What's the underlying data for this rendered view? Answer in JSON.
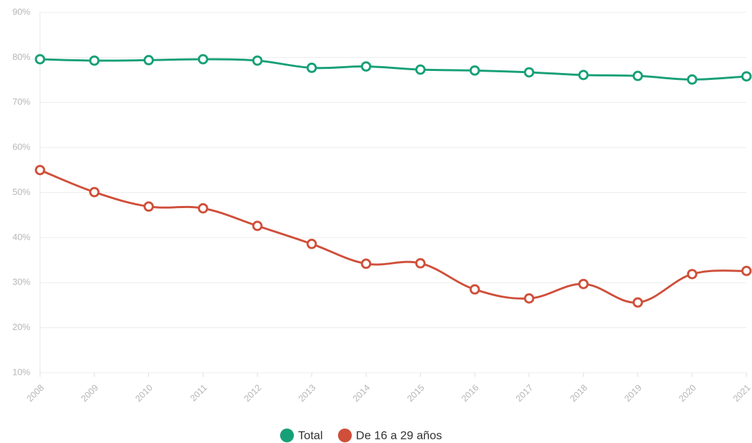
{
  "chart_data": {
    "type": "line",
    "categories": [
      "2008",
      "2009",
      "2010",
      "2011",
      "2012",
      "2013",
      "2014",
      "2015",
      "2016",
      "2017",
      "2018",
      "2019",
      "2020",
      "2021"
    ],
    "series": [
      {
        "name": "Total",
        "color": "#17a077",
        "values": [
          79.6,
          79.3,
          79.4,
          79.6,
          79.3,
          77.7,
          78.0,
          77.3,
          77.1,
          76.7,
          76.1,
          75.9,
          75.1,
          75.8
        ]
      },
      {
        "name": "De 16 a 29 años",
        "color": "#cf4f3a",
        "values": [
          55.0,
          50.1,
          46.9,
          46.5,
          42.6,
          38.6,
          34.2,
          34.3,
          28.5,
          26.5,
          29.7,
          25.6,
          31.9,
          32.6
        ]
      }
    ],
    "ylim": [
      10,
      90
    ],
    "yticks": [
      {
        "value": 10,
        "label": "10%"
      },
      {
        "value": 20,
        "label": "20%"
      },
      {
        "value": 30,
        "label": "30%"
      },
      {
        "value": 40,
        "label": "40%"
      },
      {
        "value": 50,
        "label": "50%"
      },
      {
        "value": 60,
        "label": "60%"
      },
      {
        "value": 70,
        "label": "70%"
      },
      {
        "value": 80,
        "label": "80%"
      },
      {
        "value": 90,
        "label": "90%"
      }
    ],
    "grid": true,
    "legend": "bottom"
  }
}
